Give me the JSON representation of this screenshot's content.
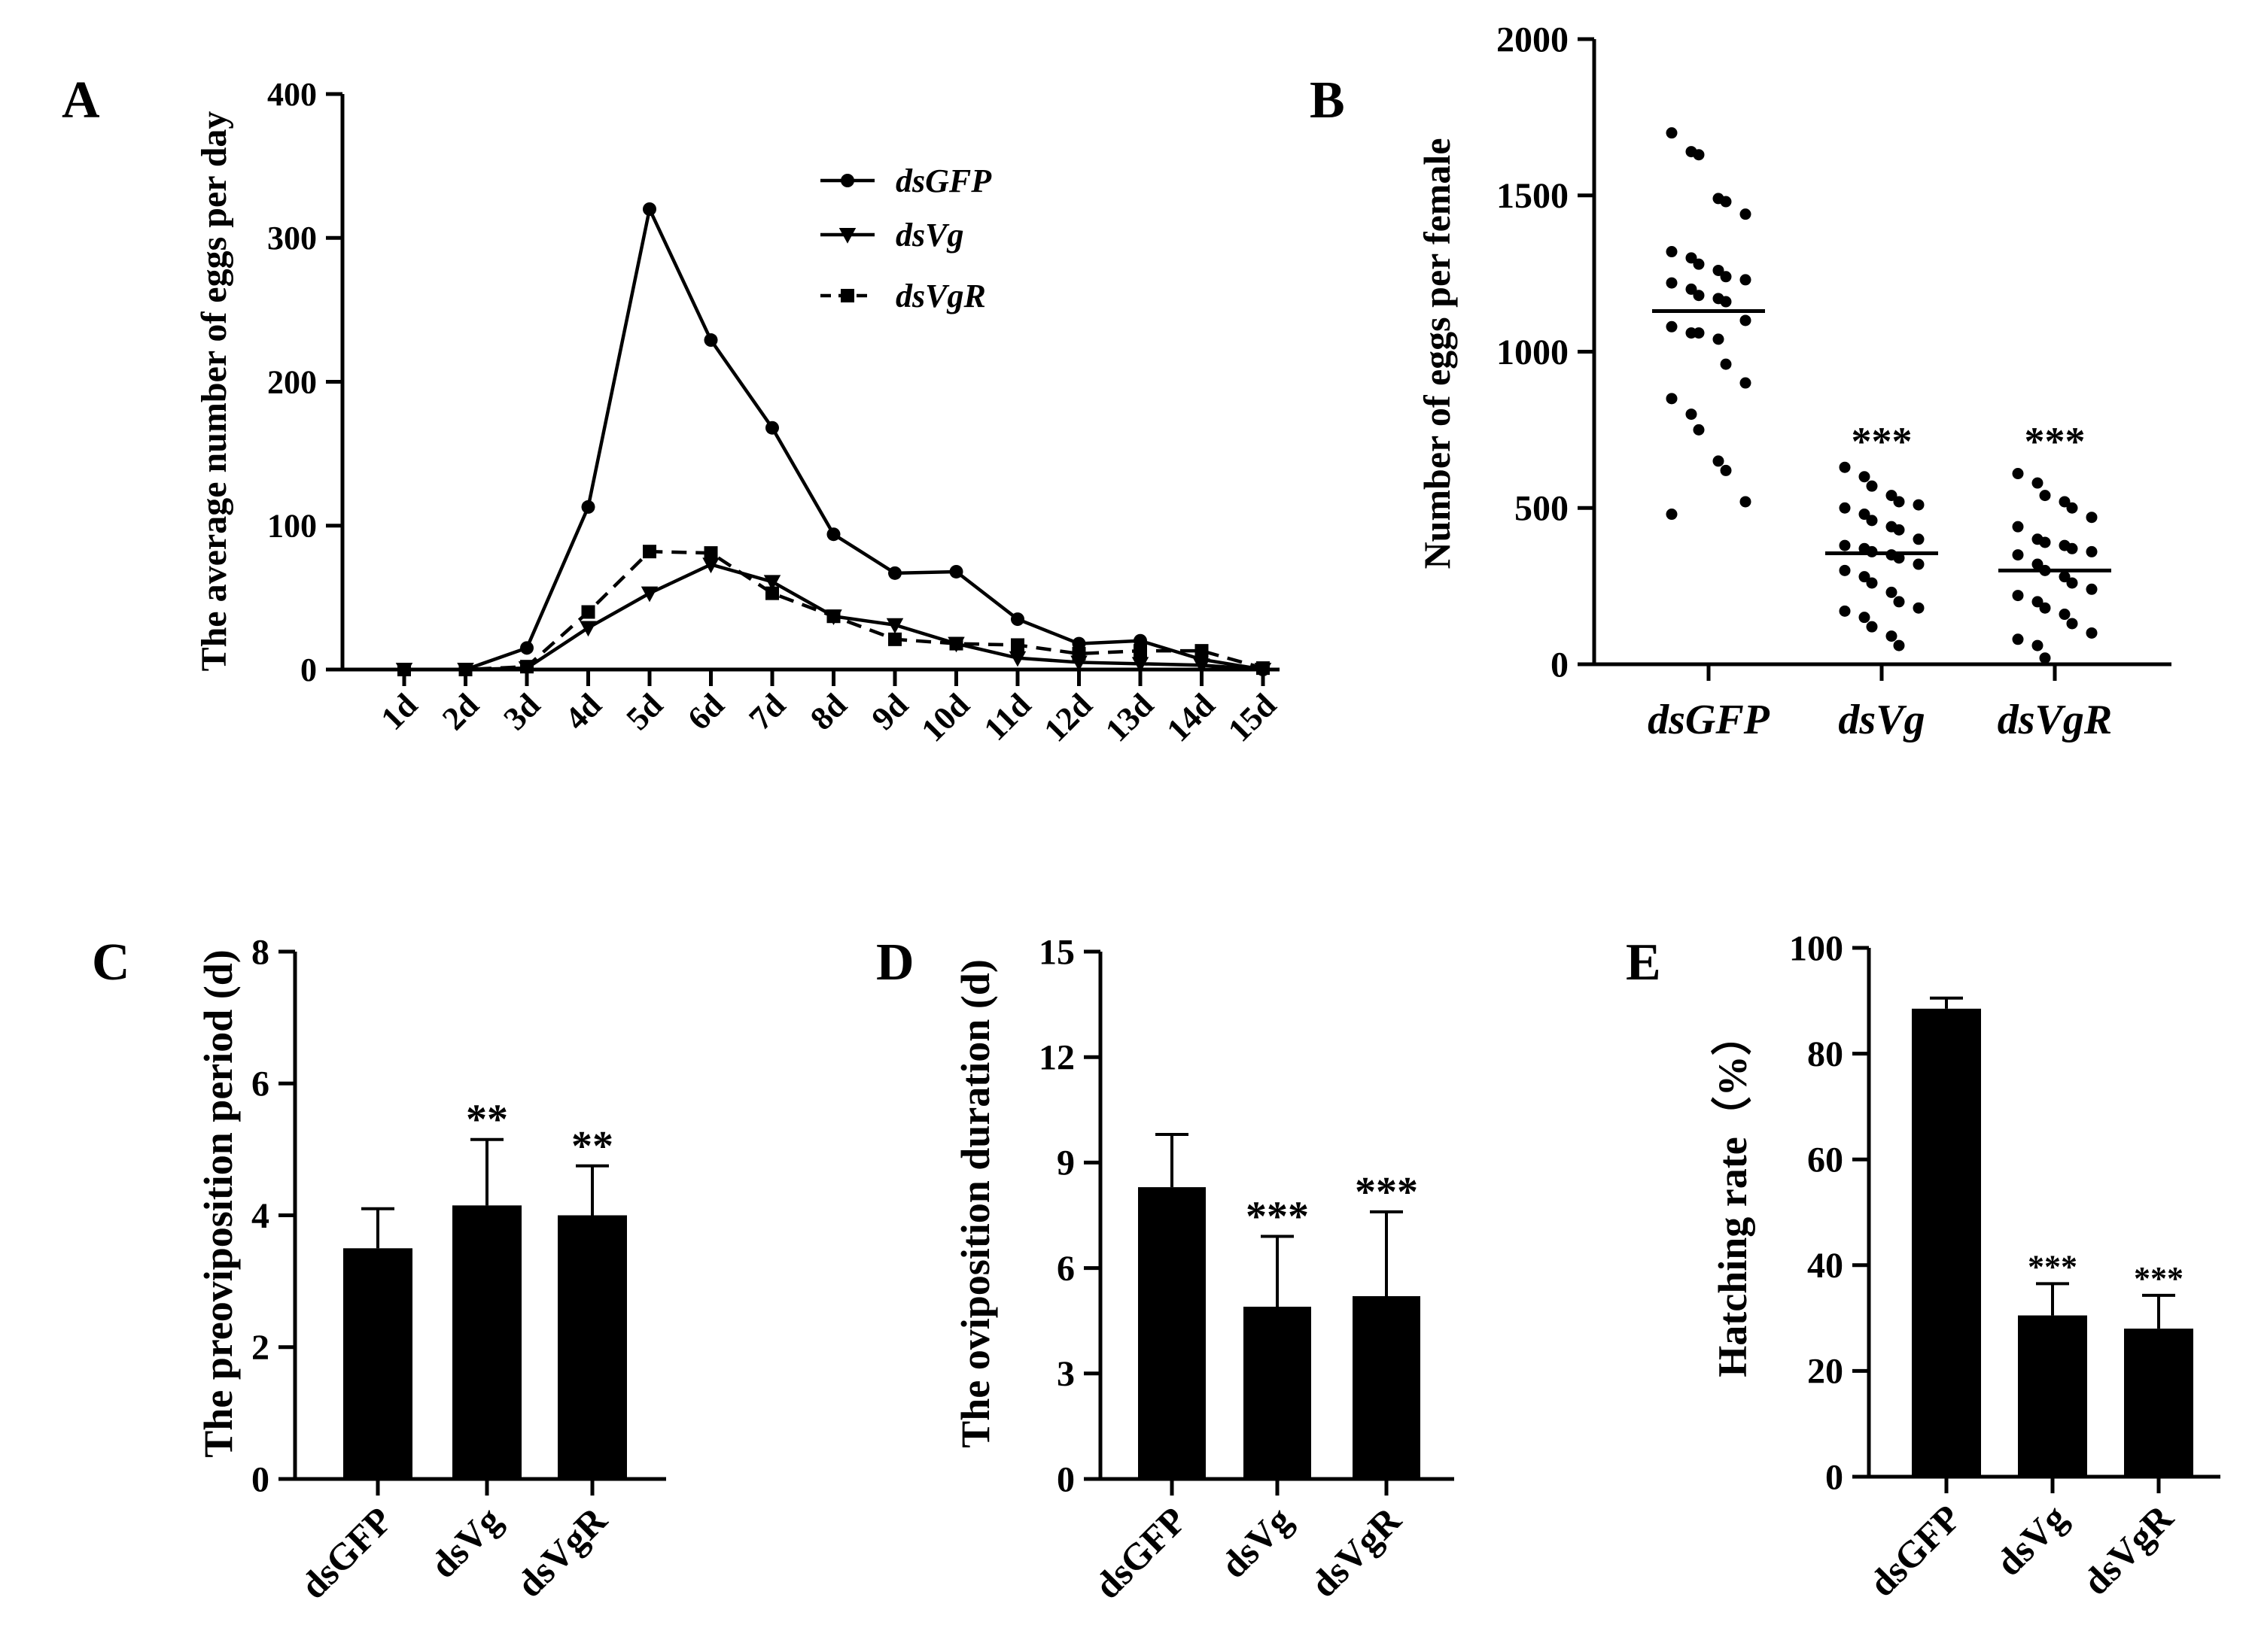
{
  "chart_data": [
    {
      "panel": "A",
      "type": "line",
      "ylabel": "The average number of eggs per day",
      "ylim": [
        0,
        400
      ],
      "yticks": [
        0,
        100,
        200,
        300,
        400
      ],
      "categories": [
        "1d",
        "2d",
        "3d",
        "4d",
        "5d",
        "6d",
        "7d",
        "8d",
        "9d",
        "10d",
        "11d",
        "12d",
        "13d",
        "14d",
        "15d"
      ],
      "legend_position": "top-right",
      "series": [
        {
          "name": "dsGFP",
          "marker": "circle",
          "dash": "solid",
          "values": [
            0,
            0,
            15,
            113,
            320,
            229,
            168,
            94,
            67,
            68,
            35,
            18,
            20,
            7,
            0
          ]
        },
        {
          "name": "dsVg",
          "marker": "triangle-down",
          "dash": "solid",
          "values": [
            0,
            0,
            1,
            29,
            53,
            73,
            61,
            37,
            31,
            18,
            8,
            5,
            4,
            3,
            0
          ]
        },
        {
          "name": "dsVgR",
          "marker": "square",
          "dash": "dashed",
          "values": [
            0,
            0,
            2,
            40,
            82,
            81,
            53,
            37,
            21,
            18,
            17,
            11,
            13,
            13,
            1
          ]
        }
      ]
    },
    {
      "panel": "B",
      "type": "scatter",
      "ylabel": "Number of eggs per female",
      "ylim": [
        0,
        2000
      ],
      "yticks": [
        0,
        500,
        1000,
        1500,
        2000
      ],
      "categories": [
        "dsGFP",
        "dsVg",
        "dsVgR"
      ],
      "means": [
        1130,
        355,
        300
      ],
      "significance": [
        "",
        "***",
        "***"
      ],
      "points": [
        [
          1700,
          1640,
          1630,
          1490,
          1480,
          1440,
          1320,
          1300,
          1280,
          1260,
          1240,
          1230,
          1220,
          1200,
          1180,
          1170,
          1160,
          1100,
          1080,
          1060,
          1060,
          1040,
          960,
          900,
          850,
          800,
          750,
          650,
          620,
          520,
          480
        ],
        [
          630,
          600,
          570,
          540,
          520,
          510,
          500,
          480,
          460,
          440,
          430,
          400,
          380,
          370,
          360,
          350,
          340,
          320,
          300,
          280,
          260,
          230,
          200,
          180,
          170,
          150,
          120,
          90,
          60
        ],
        [
          610,
          580,
          540,
          520,
          500,
          470,
          440,
          400,
          390,
          380,
          370,
          360,
          350,
          320,
          300,
          280,
          260,
          240,
          220,
          200,
          180,
          160,
          130,
          100,
          80,
          60,
          20
        ]
      ]
    },
    {
      "panel": "C",
      "type": "bar",
      "ylabel": "The preoviposition period (d)",
      "ylim": [
        0,
        8
      ],
      "yticks": [
        0,
        2,
        4,
        6,
        8
      ],
      "categories": [
        "dsGFP",
        "dsVg",
        "dsVgR"
      ],
      "values": [
        3.5,
        4.15,
        4.0
      ],
      "errors": [
        0.6,
        1.0,
        0.75
      ],
      "significance": [
        "",
        "**",
        "**"
      ]
    },
    {
      "panel": "D",
      "type": "bar",
      "ylabel": "The oviposition duration (d)",
      "ylim": [
        0,
        15
      ],
      "yticks": [
        0,
        3,
        6,
        9,
        12,
        15
      ],
      "categories": [
        "dsGFP",
        "dsVg",
        "dsVgR"
      ],
      "values": [
        8.3,
        4.9,
        5.2
      ],
      "errors": [
        1.5,
        2.0,
        2.4
      ],
      "significance": [
        "",
        "***",
        "***"
      ]
    },
    {
      "panel": "E",
      "type": "bar",
      "ylabel": "Hatching rate（%）",
      "ylim": [
        0,
        100
      ],
      "yticks": [
        0,
        20,
        40,
        60,
        80,
        100
      ],
      "categories": [
        "dsGFP",
        "dsVg",
        "dsVgR"
      ],
      "values": [
        88.5,
        30.5,
        28.0
      ],
      "errors": [
        2.0,
        6.0,
        6.3
      ],
      "significance": [
        "",
        "***",
        "***"
      ]
    }
  ]
}
